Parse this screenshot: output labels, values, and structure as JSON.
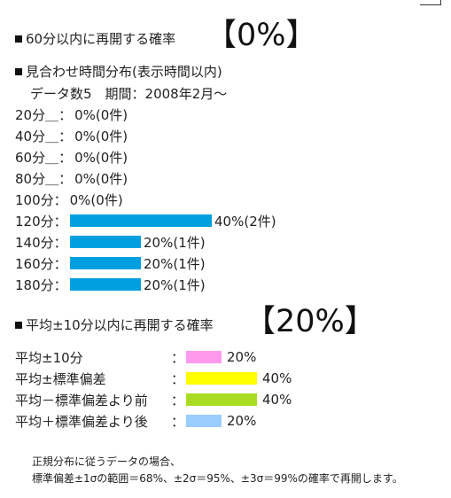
{
  "section1": {
    "title": "60分以内に再開する確率",
    "percent": "【0%】"
  },
  "section2": {
    "title": "見合わせ時間分布(表示時間以内)",
    "meta": "データ数5　期間：2008年2月～",
    "color": "#00A0E0",
    "rows": [
      {
        "label": "20分＿：",
        "value": "0%(0件)",
        "fraction": 0.0
      },
      {
        "label": "40分＿：",
        "value": "0%(0件)",
        "fraction": 0.0
      },
      {
        "label": "60分＿：",
        "value": "0%(0件)",
        "fraction": 0.0
      },
      {
        "label": "80分＿：",
        "value": "0%(0件)",
        "fraction": 0.0
      },
      {
        "label": "100分：",
        "value": "0%(0件)",
        "fraction": 0.0
      },
      {
        "label": "120分：",
        "value": "40%(2件)",
        "fraction": 0.4
      },
      {
        "label": "140分：",
        "value": "20%(1件)",
        "fraction": 0.2
      },
      {
        "label": "160分：",
        "value": "20%(1件)",
        "fraction": 0.2
      },
      {
        "label": "180分：",
        "value": "20%(1件)",
        "fraction": 0.2
      }
    ]
  },
  "section3": {
    "title": "平均±10分以内に再開する確率",
    "percent": "【20%】",
    "rows": [
      {
        "label": "平均±10分",
        "value": "20%",
        "fraction": 0.2,
        "color": "#FF99EE"
      },
      {
        "label": "平均±標準偏差",
        "value": "40%",
        "fraction": 0.4,
        "color": "#FFFF00"
      },
      {
        "label": "平均－標準偏差より前",
        "value": "40%",
        "fraction": 0.4,
        "color": "#AADD22"
      },
      {
        "label": "平均＋標準偏差より後",
        "value": "20%",
        "fraction": 0.2,
        "color": "#99CCFF"
      }
    ],
    "separator": "："
  },
  "note": {
    "line1": "正規分布に従うデータの場合、",
    "line2": "標準偏差±1σの範囲＝68%、±2σ＝95%、±3σ＝99%の確率で再開します。"
  }
}
